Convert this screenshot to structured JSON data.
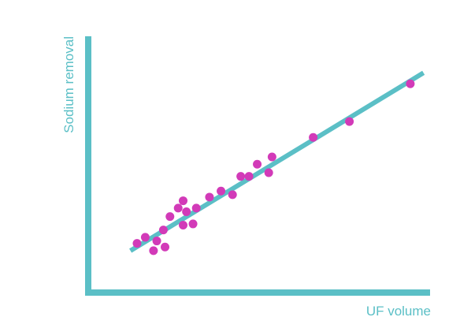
{
  "chart_data": {
    "type": "scatter",
    "title": "",
    "xlabel": "UF volume",
    "ylabel": "Sodium removal",
    "xlim": [
      0,
      100
    ],
    "ylim": [
      0,
      100
    ],
    "grid": false,
    "legend": "none",
    "ticks_shown": false,
    "points": [
      {
        "x": 11,
        "y": 15
      },
      {
        "x": 13.5,
        "y": 17.5
      },
      {
        "x": 16,
        "y": 12
      },
      {
        "x": 17,
        "y": 16
      },
      {
        "x": 19,
        "y": 20.5
      },
      {
        "x": 19.5,
        "y": 13.5
      },
      {
        "x": 21,
        "y": 26
      },
      {
        "x": 23.5,
        "y": 29.5
      },
      {
        "x": 25,
        "y": 32.5
      },
      {
        "x": 25,
        "y": 22.5
      },
      {
        "x": 26,
        "y": 28
      },
      {
        "x": 28,
        "y": 23
      },
      {
        "x": 29,
        "y": 29.5
      },
      {
        "x": 33,
        "y": 34
      },
      {
        "x": 36.5,
        "y": 36.5
      },
      {
        "x": 40,
        "y": 35
      },
      {
        "x": 42.5,
        "y": 42.5
      },
      {
        "x": 45,
        "y": 42.5
      },
      {
        "x": 47.5,
        "y": 47.5
      },
      {
        "x": 51,
        "y": 44
      },
      {
        "x": 52,
        "y": 50.5
      },
      {
        "x": 64.5,
        "y": 58.5
      },
      {
        "x": 75.5,
        "y": 65
      },
      {
        "x": 94,
        "y": 80.5
      }
    ],
    "trendline": {
      "x": [
        9,
        98
      ],
      "y": [
        12,
        85
      ]
    },
    "colors": {
      "axis": "#5bbfc6",
      "trendline": "#5bbfc6",
      "points": "#d23ab8",
      "label": "#5bbfc6"
    }
  }
}
